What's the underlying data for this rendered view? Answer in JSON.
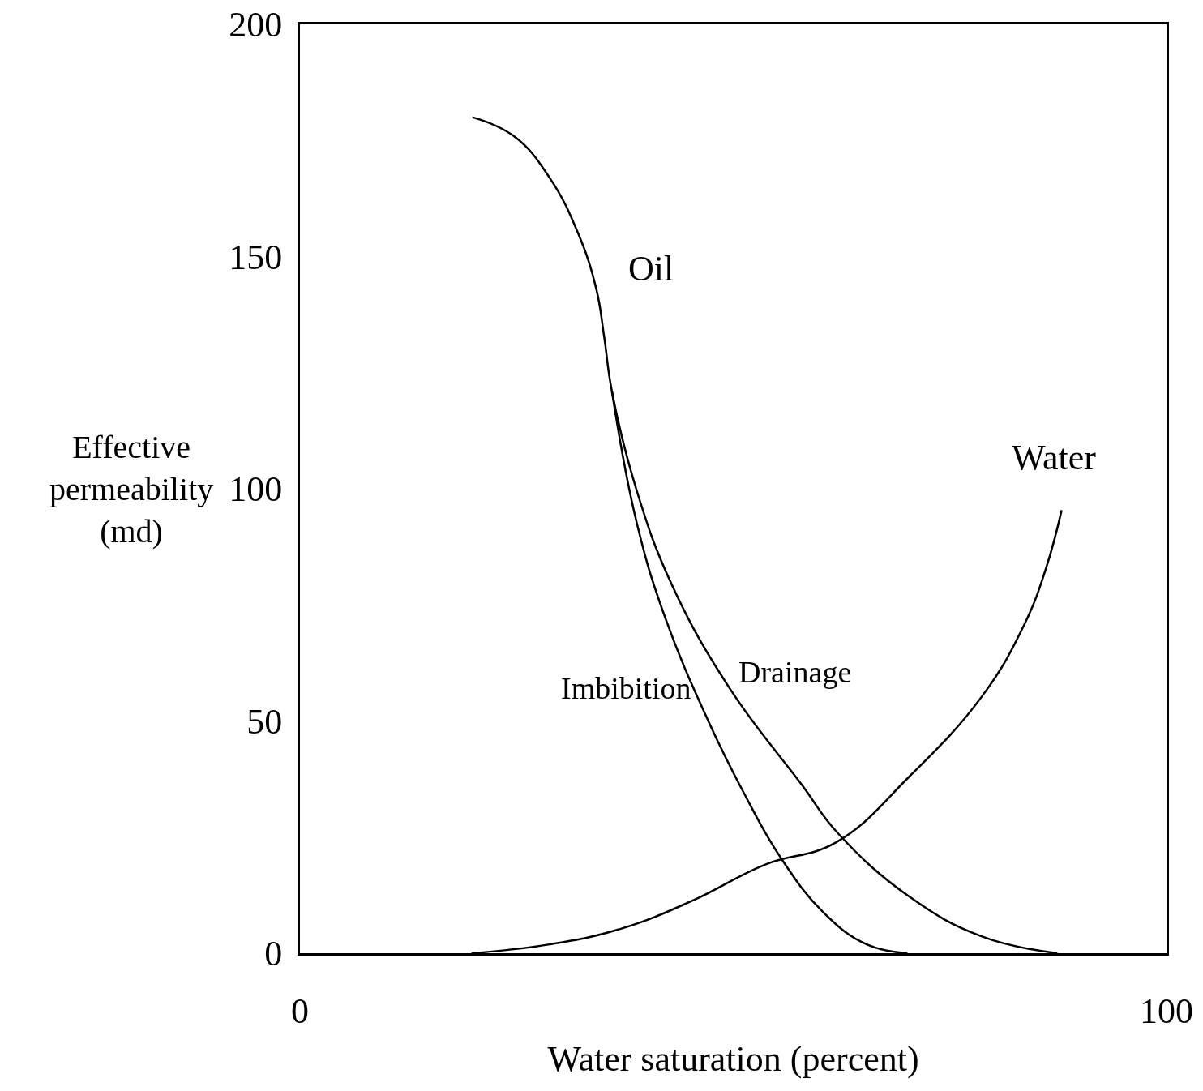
{
  "chart_data": {
    "type": "line",
    "xlabel": "Water saturation (percent)",
    "ylabel": "Effective\npermeability\n(md)",
    "xlim": [
      0,
      100
    ],
    "xticks": [
      0,
      100
    ],
    "ylim": [
      0,
      200
    ],
    "yticks": [
      0,
      50,
      100,
      150,
      200
    ],
    "grid": false,
    "legend": false,
    "marker": "none",
    "line_style": "solid",
    "series": [
      {
        "name": "Drainage",
        "color": "#000000",
        "x": [
          19.9,
          24.7,
          28.8,
          32.1,
          34.2,
          35.1,
          36,
          38.8,
          42.9,
          49.6,
          57.9,
          62,
          70.3,
          78.7,
          87.4
        ],
        "values": [
          180,
          175.9,
          167,
          155,
          143,
          132.8,
          121,
          100,
          79.4,
          57,
          36.3,
          26,
          12.2,
          3.6,
          0
        ]
      },
      {
        "name": "Imbibition",
        "color": "#000000",
        "x": [
          36,
          38.8,
          42.1,
          47.1,
          51.2,
          55.4,
          60.4,
          65.4,
          70.1
        ],
        "values": [
          121,
          93.2,
          72.5,
          50.1,
          34.6,
          20.8,
          8.8,
          1.9,
          0
        ]
      },
      {
        "name": "Water",
        "color": "#000000",
        "x": [
          19.8,
          28.8,
          37.1,
          45.4,
          53.7,
          61.8,
          70.3,
          78.7,
          83.6,
          86.1,
          87.9
        ],
        "values": [
          0,
          1.9,
          5.3,
          11.4,
          19.1,
          23.8,
          38,
          55.3,
          70.8,
          82.9,
          95.4
        ]
      }
    ],
    "annotations": [
      "Oil"
    ]
  }
}
